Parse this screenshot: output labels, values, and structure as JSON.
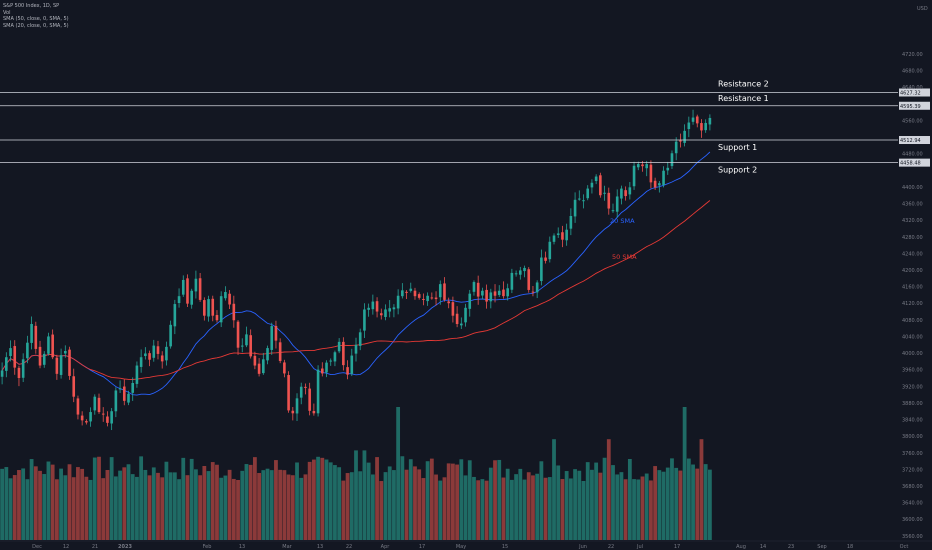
{
  "legend": {
    "symbol": "S&P 500 Index, 1D, SP",
    "vol": "Vol",
    "sma50": "SMA (50, close, 0, SMA, 5)",
    "sma20": "SMA (20, close, 0, SMA, 5)"
  },
  "colors": {
    "background": "#131722",
    "up": "#26a69a",
    "down": "#ef5350",
    "vol_up": "#1f6b65",
    "vol_down": "#8b3a3a",
    "sma20": "#2962ff",
    "sma50": "#e53935",
    "level_line": "#d1d4dc",
    "axis_text": "#787b86"
  },
  "chart_data": {
    "type": "candlestick",
    "currency": "USD",
    "y_axis": {
      "range": [
        3550,
        4850
      ],
      "ticks": [
        "4720.00",
        "4680.00",
        "4640.00",
        "4560.00",
        "4480.00",
        "4400.00",
        "4360.00",
        "4320.00",
        "4280.00",
        "4240.00",
        "4200.00",
        "4160.00",
        "4120.00",
        "4080.00",
        "4040.00",
        "4000.00",
        "3960.00",
        "3920.00",
        "3880.00",
        "3840.00",
        "3800.00",
        "3760.00",
        "3720.00",
        "3680.00",
        "3640.00",
        "3600.00",
        "3560.00"
      ]
    },
    "x_axis": {
      "labels": [
        "Dec",
        "12",
        "21",
        "2023",
        "Feb",
        "13",
        "Mar",
        "13",
        "22",
        "Apr",
        "17",
        "May",
        "15",
        "Jun",
        "22",
        "Jul",
        "17",
        "Aug",
        "14",
        "23",
        "Sep",
        "18",
        "Oct"
      ]
    },
    "levels": [
      {
        "name": "Resistance 2",
        "value": 4627.32,
        "tag": "4627.32"
      },
      {
        "name": "Resistance 1",
        "value": 4595.39,
        "tag": "4595.39"
      },
      {
        "name": "Support 1",
        "value": 4512.94,
        "tag": "4512.94"
      },
      {
        "name": "Support 2",
        "value": 4458.48,
        "tag": "4458.48"
      }
    ],
    "sma_labels": {
      "sma20": "20 SMA",
      "sma50": "50 SMA"
    },
    "price_series": [
      3958,
      3990,
      4012,
      3965,
      3940,
      3985,
      4025,
      4070,
      4010,
      3970,
      3998,
      4040,
      3990,
      3950,
      3995,
      4005,
      3945,
      3895,
      3852,
      3838,
      3833,
      3858,
      3895,
      3858,
      3852,
      3832,
      3860,
      3910,
      3915,
      3885,
      3902,
      3928,
      3970,
      3990,
      3999,
      3984,
      4018,
      3998,
      3980,
      4015,
      4068,
      4118,
      4137,
      4176,
      4119,
      4150,
      4179,
      4128,
      4090,
      4130,
      4090,
      4079,
      4137,
      4147,
      4117,
      4079,
      4013,
      4018,
      4045,
      3992,
      3970,
      3950,
      3985,
      4012,
      4065,
      4030,
      3981,
      3951,
      3862,
      3855,
      3891,
      3919,
      3917,
      3861,
      3855,
      3960,
      3951,
      3977,
      3982,
      4002,
      4027,
      3971,
      3948,
      3994,
      4020,
      4050,
      4105,
      4109,
      4124,
      4100,
      4091,
      4105,
      4108,
      4110,
      4138,
      4151,
      4146,
      4155,
      4137,
      4133,
      4129,
      4138,
      4133,
      4130,
      4166,
      4128,
      4120,
      4090,
      4070,
      4071,
      4109,
      4143,
      4171,
      4136,
      4150,
      4124,
      4146,
      4138,
      4150,
      4137,
      4156,
      4193,
      4192,
      4199,
      4205,
      4152,
      4146,
      4170,
      4230,
      4222,
      4268,
      4283,
      4288,
      4273,
      4297,
      4330,
      4369,
      4372,
      4368,
      4396,
      4410,
      4425,
      4380,
      4386,
      4348,
      4344,
      4377,
      4396,
      4378,
      4399,
      4451,
      4455,
      4450,
      4455,
      4411,
      4399,
      4409,
      4439,
      4446,
      4481,
      4509,
      4510,
      4535,
      4555,
      4567,
      4553,
      4536,
      4554,
      4566
    ]
  }
}
